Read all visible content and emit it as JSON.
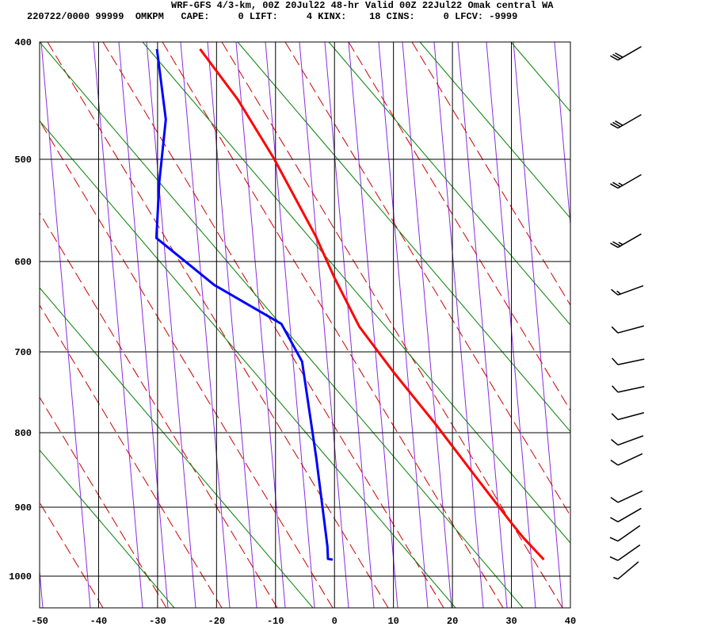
{
  "header": {
    "title": "WRF-GFS 4/3-km, 00Z 20Jul22 48-hr Valid 00Z 22Jul22 Omak central WA",
    "subtitle": "220722/0000 99999  OMKPM   CAPE:     0 LIFT:     4 KINX:    18 CINS:     0 LFCV: -9999"
  },
  "chart_data": {
    "type": "line",
    "title": "WRF-GFS 4/3-km, 00Z 20Jul22 48-hr Valid 00Z 22Jul22 Omak central WA",
    "xlabel": "",
    "ylabel": "",
    "xlim": [
      -50,
      40
    ],
    "ylim": [
      1050,
      400
    ],
    "x_ticks": [
      "-50",
      "-40",
      "-30",
      "-20",
      "-10",
      "0",
      "10",
      "20",
      "30",
      "40"
    ],
    "y_ticks": [
      "400",
      "500",
      "600",
      "700",
      "800",
      "900",
      "1000"
    ],
    "grid": true,
    "series": [
      {
        "name": "Temperature",
        "color": "#ff0000",
        "points": [
          [
            406,
            -22.8
          ],
          [
            449,
            -16.4
          ],
          [
            499,
            -10.3
          ],
          [
            575,
            -3.2
          ],
          [
            618,
            0.0
          ],
          [
            672,
            4.2
          ],
          [
            725,
            10.0
          ],
          [
            789,
            17.1
          ],
          [
            866,
            24.6
          ],
          [
            923,
            30.0
          ],
          [
            944,
            32.0
          ],
          [
            976,
            35.5
          ]
        ]
      },
      {
        "name": "Dewpoint",
        "color": "#0000ff",
        "points": [
          [
            406,
            -30.1
          ],
          [
            466,
            -28.6
          ],
          [
            522,
            -29.7
          ],
          [
            577,
            -30.2
          ],
          [
            626,
            -20.4
          ],
          [
            669,
            -9.0
          ],
          [
            712,
            -5.5
          ],
          [
            833,
            -3.1
          ],
          [
            923,
            -1.7
          ],
          [
            957,
            -1.2
          ],
          [
            975,
            -1.1
          ],
          [
            976,
            -0.3
          ]
        ]
      }
    ],
    "wind_barbs": [
      {
        "p": 410,
        "dir": 240,
        "kt": 30
      },
      {
        "p": 468,
        "dir": 240,
        "kt": 30
      },
      {
        "p": 522,
        "dir": 240,
        "kt": 25
      },
      {
        "p": 580,
        "dir": 240,
        "kt": 25
      },
      {
        "p": 630,
        "dir": 250,
        "kt": 15
      },
      {
        "p": 672,
        "dir": 255,
        "kt": 10
      },
      {
        "p": 708,
        "dir": 258,
        "kt": 10
      },
      {
        "p": 742,
        "dir": 258,
        "kt": 10
      },
      {
        "p": 776,
        "dir": 255,
        "kt": 10
      },
      {
        "p": 808,
        "dir": 250,
        "kt": 10
      },
      {
        "p": 835,
        "dir": 245,
        "kt": 10
      },
      {
        "p": 885,
        "dir": 245,
        "kt": 10
      },
      {
        "p": 912,
        "dir": 240,
        "kt": 10
      },
      {
        "p": 940,
        "dir": 235,
        "kt": 10
      },
      {
        "p": 968,
        "dir": 235,
        "kt": 10
      },
      {
        "p": 995,
        "dir": 230,
        "kt": 5
      }
    ],
    "colors": {
      "dry_adiabat": "#008000",
      "moist_adiabat": "#cc0000",
      "mixing_ratio": "#8a2be2",
      "grid": "#000000"
    }
  }
}
